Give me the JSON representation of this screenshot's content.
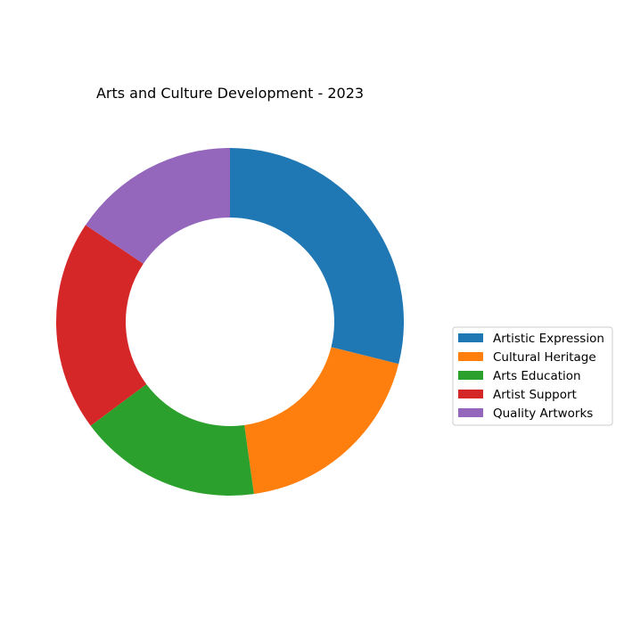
{
  "chart_data": {
    "type": "pie",
    "variant": "donut",
    "title": "Arts and Culture Development - 2023",
    "categories": [
      "Artistic Expression",
      "Cultural Heritage",
      "Arts Education",
      "Artist Support",
      "Quality Artworks"
    ],
    "values": [
      28.9,
      18.9,
      17.0,
      19.6,
      15.6
    ],
    "colors": [
      "#1f77b4",
      "#ff7f0e",
      "#2ca02c",
      "#d62728",
      "#9467bd"
    ],
    "start_angle": "top, clockwise",
    "legend": "center-right"
  }
}
